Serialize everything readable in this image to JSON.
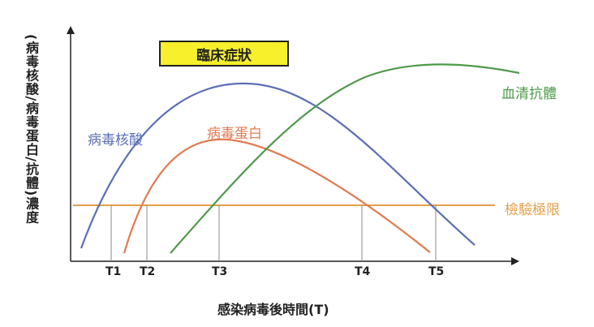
{
  "y_axis_label": "(病毒核酸/病毒蛋白/抗體)濃度",
  "x_axis_label": "感染病毒後時間(T)",
  "symptom_box_label": "臨床症狀",
  "curves": {
    "nucleic_acid": {
      "label": "病毒核酸",
      "color": "#5b6fb5"
    },
    "protein": {
      "label": "病毒蛋白",
      "color": "#e07a52"
    },
    "antibody": {
      "label": "血清抗體",
      "color": "#4e9a4a"
    },
    "threshold": {
      "label": "檢驗極限",
      "color": "#e2a04a"
    }
  },
  "ticks": [
    "T1",
    "T2",
    "T3",
    "T4",
    "T5"
  ]
}
